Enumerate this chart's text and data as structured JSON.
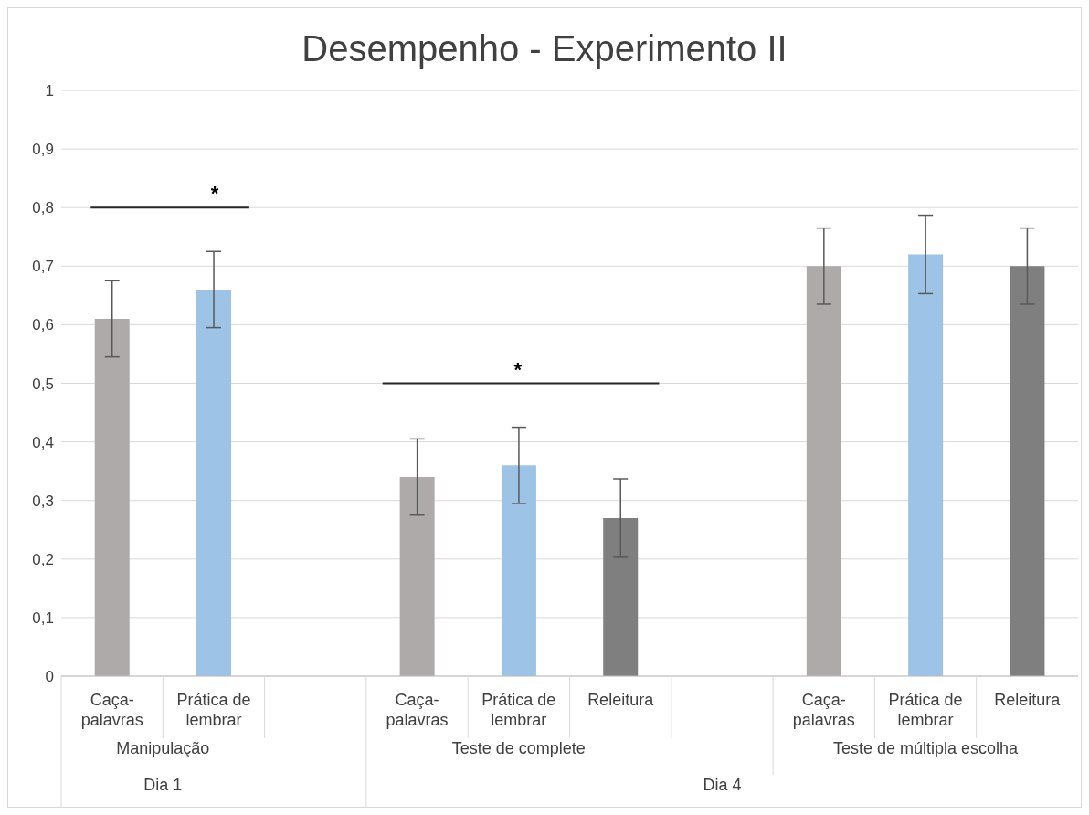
{
  "chart_data": {
    "type": "bar",
    "title": "Desempenho - Experimento II",
    "categories": [
      "Caça-palavras",
      "Prática de lembrar",
      null,
      "Caça-palavras",
      "Prática de lembrar",
      "Releitura",
      null,
      "Caça-palavras",
      "Prática de lembrar",
      "Releitura"
    ],
    "values": [
      0.61,
      0.66,
      null,
      0.34,
      0.36,
      0.27,
      null,
      0.7,
      0.72,
      0.7
    ],
    "colors": [
      "#aeaaaa",
      "#9dc3e6",
      null,
      "#aeaaaa",
      "#9dc3e6",
      "#7f7f7f",
      null,
      "#aeaaaa",
      "#9dc3e6",
      "#7f7f7f"
    ],
    "errors": [
      0.065,
      0.065,
      null,
      0.065,
      0.065,
      0.067,
      null,
      0.065,
      0.067,
      0.065
    ],
    "ylim": [
      0,
      1
    ],
    "yticks": [
      0,
      {
        "value": 0.1,
        "label": "0,1"
      },
      {
        "value": 0.2,
        "label": "0,2"
      },
      {
        "value": 0.3,
        "label": "0,3"
      },
      {
        "value": 0.4,
        "label": "0,4"
      },
      {
        "value": 0.5,
        "label": "0,5"
      },
      {
        "value": 0.6,
        "label": "0,6"
      },
      {
        "value": 0.7,
        "label": "0,7"
      },
      {
        "value": 0.8,
        "label": "0,8"
      },
      {
        "value": 0.9,
        "label": "0,9"
      },
      1
    ],
    "grid": "y",
    "annotations": [
      "Manipulação",
      "Teste de complete",
      "Teste de múltipla escolha",
      "Dia 1",
      "Dia 4",
      "*",
      "*"
    ]
  }
}
